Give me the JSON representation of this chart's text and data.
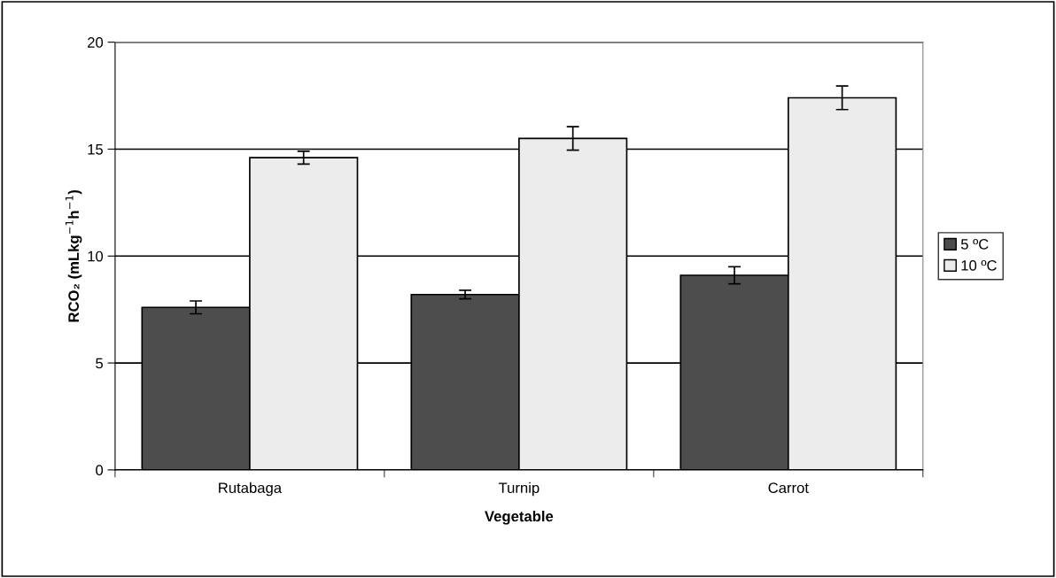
{
  "chart_data": {
    "type": "bar",
    "xlabel": "Vegetable",
    "ylabel": "RCO₂ (mLkg$^{−1}$h$^{−1}$)",
    "categories": [
      "Rutabaga",
      "Turnip",
      "Carrot"
    ],
    "series": [
      {
        "name": "5 ºC",
        "color": "#4d4d4d",
        "values": [
          7.6,
          8.2,
          9.1
        ],
        "errors": [
          0.3,
          0.2,
          0.4
        ]
      },
      {
        "name": "10 ºC",
        "color": "#ececec",
        "values": [
          14.6,
          15.5,
          17.4
        ],
        "errors": [
          0.3,
          0.55,
          0.55
        ]
      }
    ],
    "ylim": [
      0,
      20
    ],
    "yticks": [
      0,
      5,
      10,
      15,
      20
    ],
    "grid": "y",
    "legend": "right"
  }
}
